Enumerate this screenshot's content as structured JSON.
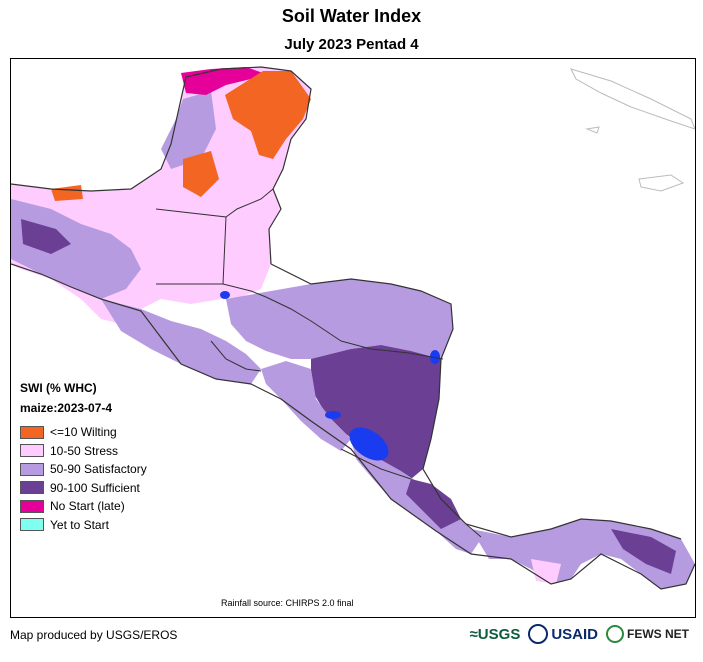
{
  "title": "Soil Water Index",
  "subtitle": "July 2023 Pentad 4",
  "legend": {
    "title": "SWI (% WHC)",
    "subtitle": "maize:2023-07-4",
    "items": [
      {
        "label": "<=10 Wilting",
        "color": "#f26522"
      },
      {
        "label": "10-50 Stress",
        "color": "#ffccff"
      },
      {
        "label": "50-90 Satisfactory",
        "color": "#b79be0"
      },
      {
        "label": "90-100 Sufficient",
        "color": "#6a3f94"
      },
      {
        "label": "No Start (late)",
        "color": "#e6009a"
      },
      {
        "label": "Yet to Start",
        "color": "#7fffef"
      }
    ]
  },
  "rainfall_source": "Rainfall source: CHIRPS 2.0 final",
  "credit": "Map produced by USGS/EROS",
  "logos": {
    "usgs": "≈USGS",
    "usaid": "USAID",
    "fews": "FEWS NET"
  },
  "colors": {
    "wilting": "#f26522",
    "stress": "#ffccff",
    "satisfactory": "#b79be0",
    "sufficient": "#6a3f94",
    "no_start": "#e6009a",
    "water": "#1a3cf0",
    "border": "#333333"
  }
}
